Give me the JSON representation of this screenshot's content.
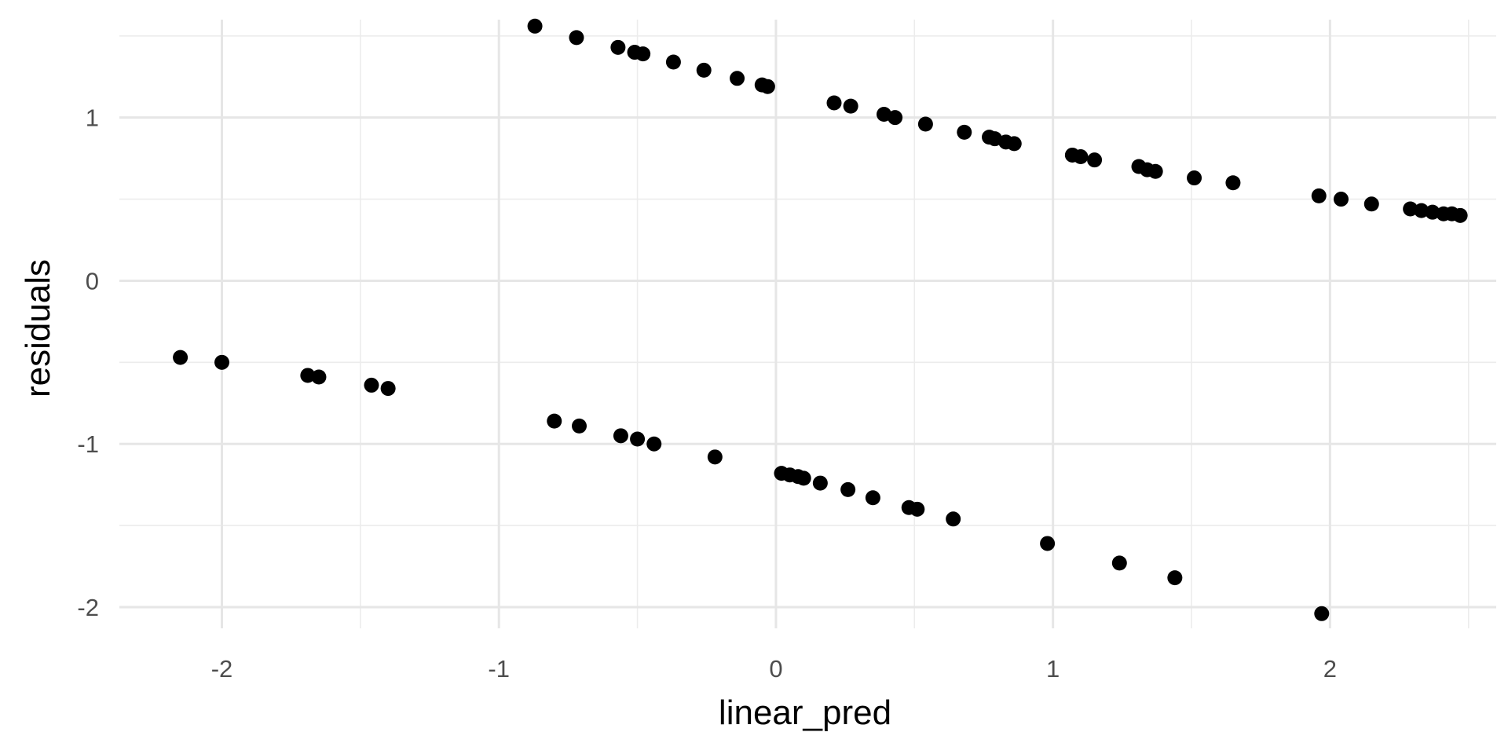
{
  "chart_data": {
    "type": "scatter",
    "title": "",
    "xlabel": "linear_pred",
    "ylabel": "residuals",
    "xlim": [
      -2.37,
      2.6
    ],
    "ylim": [
      -2.13,
      1.6
    ],
    "x_ticks": [
      -2,
      -1,
      0,
      1,
      2
    ],
    "y_ticks": [
      -2,
      -1,
      0,
      1
    ],
    "x_tick_labels": [
      "-2",
      "-1",
      "0",
      "1",
      "2"
    ],
    "y_tick_labels": [
      "-2",
      "-1",
      "0",
      "1"
    ],
    "grid": true,
    "legend": "none",
    "point_color": "#000000",
    "points": [
      {
        "x": -2.15,
        "y": -0.47
      },
      {
        "x": -2.0,
        "y": -0.5
      },
      {
        "x": -1.69,
        "y": -0.58
      },
      {
        "x": -1.65,
        "y": -0.59
      },
      {
        "x": -1.46,
        "y": -0.64
      },
      {
        "x": -1.4,
        "y": -0.66
      },
      {
        "x": -0.87,
        "y": 1.56
      },
      {
        "x": -0.72,
        "y": 1.49
      },
      {
        "x": -0.57,
        "y": 1.43
      },
      {
        "x": -0.51,
        "y": 1.4
      },
      {
        "x": -0.48,
        "y": 1.39
      },
      {
        "x": -0.37,
        "y": 1.34
      },
      {
        "x": -0.26,
        "y": 1.29
      },
      {
        "x": -0.14,
        "y": 1.24
      },
      {
        "x": -0.05,
        "y": 1.2
      },
      {
        "x": -0.03,
        "y": 1.19
      },
      {
        "x": 0.21,
        "y": 1.09
      },
      {
        "x": 0.27,
        "y": 1.07
      },
      {
        "x": 0.39,
        "y": 1.02
      },
      {
        "x": 0.43,
        "y": 1.0
      },
      {
        "x": 0.54,
        "y": 0.96
      },
      {
        "x": 0.68,
        "y": 0.91
      },
      {
        "x": 0.77,
        "y": 0.88
      },
      {
        "x": 0.79,
        "y": 0.87
      },
      {
        "x": 0.83,
        "y": 0.85
      },
      {
        "x": 0.86,
        "y": 0.84
      },
      {
        "x": 1.07,
        "y": 0.77
      },
      {
        "x": 1.1,
        "y": 0.76
      },
      {
        "x": 1.15,
        "y": 0.74
      },
      {
        "x": 1.31,
        "y": 0.7
      },
      {
        "x": 1.34,
        "y": 0.68
      },
      {
        "x": 1.37,
        "y": 0.67
      },
      {
        "x": 1.51,
        "y": 0.63
      },
      {
        "x": 1.65,
        "y": 0.6
      },
      {
        "x": 1.96,
        "y": 0.52
      },
      {
        "x": 2.04,
        "y": 0.5
      },
      {
        "x": 2.15,
        "y": 0.47
      },
      {
        "x": 2.29,
        "y": 0.44
      },
      {
        "x": 2.33,
        "y": 0.43
      },
      {
        "x": 2.37,
        "y": 0.42
      },
      {
        "x": 2.41,
        "y": 0.41
      },
      {
        "x": 2.44,
        "y": 0.41
      },
      {
        "x": 2.47,
        "y": 0.4
      },
      {
        "x": -0.8,
        "y": -0.86
      },
      {
        "x": -0.71,
        "y": -0.89
      },
      {
        "x": -0.56,
        "y": -0.95
      },
      {
        "x": -0.5,
        "y": -0.97
      },
      {
        "x": -0.44,
        "y": -1.0
      },
      {
        "x": -0.22,
        "y": -1.08
      },
      {
        "x": 0.02,
        "y": -1.18
      },
      {
        "x": 0.05,
        "y": -1.19
      },
      {
        "x": 0.08,
        "y": -1.2
      },
      {
        "x": 0.1,
        "y": -1.21
      },
      {
        "x": 0.16,
        "y": -1.24
      },
      {
        "x": 0.26,
        "y": -1.28
      },
      {
        "x": 0.35,
        "y": -1.33
      },
      {
        "x": 0.48,
        "y": -1.39
      },
      {
        "x": 0.51,
        "y": -1.4
      },
      {
        "x": 0.64,
        "y": -1.46
      },
      {
        "x": 0.98,
        "y": -1.61
      },
      {
        "x": 1.24,
        "y": -1.73
      },
      {
        "x": 1.44,
        "y": -1.82
      },
      {
        "x": 1.97,
        "y": -2.04
      }
    ]
  }
}
